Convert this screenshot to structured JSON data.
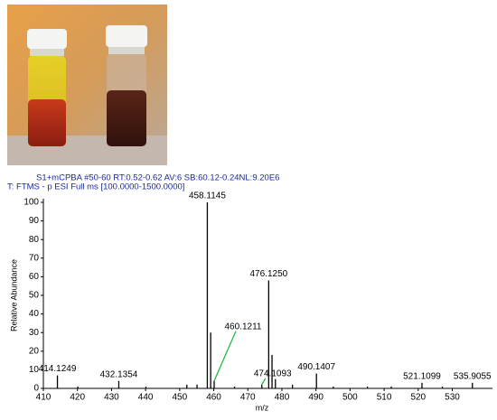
{
  "chart_data": {
    "type": "stick",
    "title": "S1+mCPBA #50-60 RT:0.52-0.62 AV:6 SB:60.12-0.24NL:9.20E6",
    "subtitle": "T: FTMS - p ESI Full ms [100.0000-1500.0000]",
    "x_label": "m/z",
    "y_label": "Relative Abundance",
    "x": [
      414.1249,
      420.1,
      432.1354,
      440.1,
      452.1,
      455.1,
      458.1145,
      459.1,
      460.1211,
      466.1,
      474.1093,
      476.125,
      477.1,
      478.1,
      483.1,
      490.1407,
      495.1,
      505.1,
      512.1,
      521.1099,
      527.1,
      535.9055
    ],
    "values": [
      7,
      1,
      4,
      1,
      2,
      2,
      100,
      30,
      4,
      1,
      2,
      58,
      18,
      5,
      2,
      8,
      1,
      1,
      1,
      3,
      1,
      3
    ],
    "value_labels": [
      "414.1249",
      null,
      "432.1354",
      null,
      null,
      null,
      "458.1145",
      null,
      "460.1211",
      null,
      "474.1093",
      "476.1250",
      null,
      null,
      null,
      "490.1407",
      null,
      null,
      null,
      "521.1099",
      null,
      "535.9055"
    ],
    "color": "#000000",
    "leader_color": "#22bb44",
    "title_color": "#1a2a9a",
    "xlim": [
      410,
      541.8
    ],
    "ylim": [
      0,
      100
    ],
    "xticks": [
      410,
      420,
      430,
      440,
      450,
      460,
      470,
      480,
      490,
      500,
      510,
      520,
      530
    ],
    "yticks": [
      0,
      10,
      20,
      30,
      40,
      50,
      60,
      70,
      80,
      90,
      100
    ]
  }
}
